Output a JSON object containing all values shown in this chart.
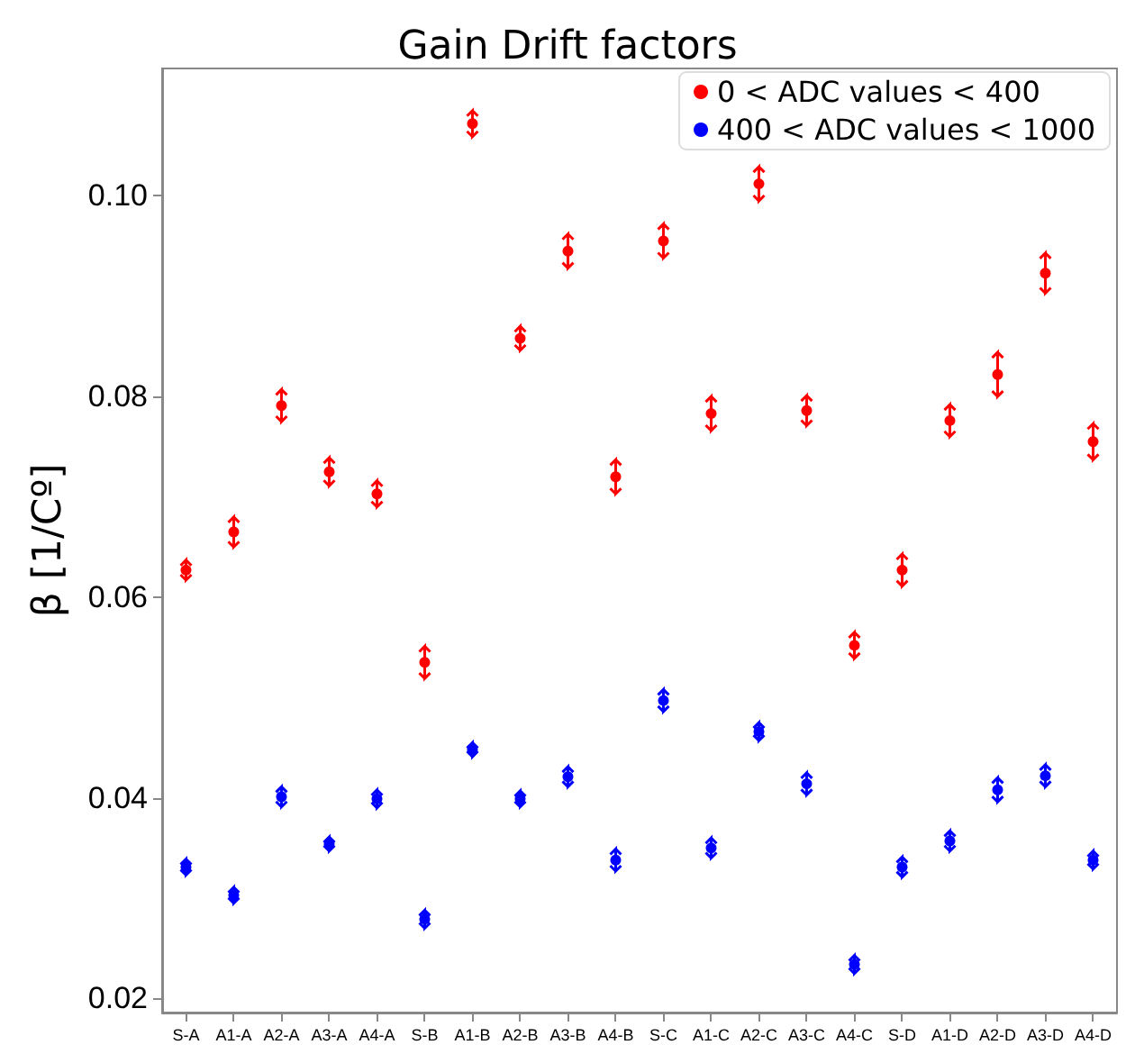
{
  "chart_data": {
    "type": "scatter",
    "title": "Gain Drift factors",
    "ylabel": "β [1/Cº]",
    "categories": [
      "S-A",
      "A1-A",
      "A2-A",
      "A3-A",
      "A4-A",
      "S-B",
      "A1-B",
      "A2-B",
      "A3-B",
      "A4-B",
      "S-C",
      "A1-C",
      "A2-C",
      "A3-C",
      "A4-C",
      "S-D",
      "A1-D",
      "A2-D",
      "A3-D",
      "A4-D"
    ],
    "series": [
      {
        "name": "0 < ADC values < 400",
        "color": "#ff0000",
        "values": [
          0.0627,
          0.0665,
          0.0791,
          0.0725,
          0.0703,
          0.0535,
          0.1072,
          0.0858,
          0.0945,
          0.072,
          0.0955,
          0.0783,
          0.1012,
          0.0786,
          0.0552,
          0.0627,
          0.0776,
          0.0822,
          0.0923,
          0.0755
        ],
        "errors": [
          0.001,
          0.0015,
          0.0016,
          0.0014,
          0.0013,
          0.0016,
          0.0013,
          0.0012,
          0.0017,
          0.0017,
          0.0017,
          0.0017,
          0.0017,
          0.0015,
          0.0013,
          0.0016,
          0.0016,
          0.0022,
          0.002,
          0.0018
        ]
      },
      {
        "name": "400 < ADC values < 1000",
        "color": "#0000ff",
        "values": [
          0.0331,
          0.0303,
          0.0401,
          0.0354,
          0.0399,
          0.0279,
          0.0448,
          0.0399,
          0.0421,
          0.0338,
          0.0497,
          0.035,
          0.0466,
          0.0414,
          0.0234,
          0.0331,
          0.0357,
          0.0408,
          0.0422,
          0.0338
        ],
        "errors": [
          0.0008,
          0.0008,
          0.001,
          0.0007,
          0.0009,
          0.0009,
          0.0007,
          0.0008,
          0.001,
          0.0011,
          0.0011,
          0.001,
          0.0009,
          0.0011,
          0.0009,
          0.001,
          0.001,
          0.0012,
          0.0011,
          0.0009
        ]
      }
    ],
    "ylim": [
      0.0186,
      0.1127
    ],
    "yticks": [
      0.02,
      0.04,
      0.06,
      0.08,
      {
        "value": 0.1,
        "label": "0.10"
      }
    ],
    "grid": false,
    "legend": "top right",
    "marker": "circle"
  }
}
